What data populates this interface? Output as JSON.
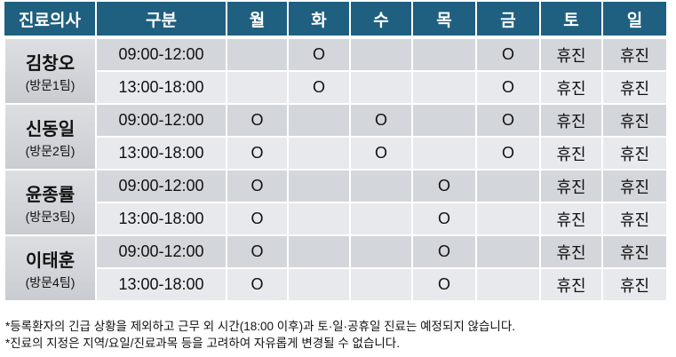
{
  "header": [
    "진료의사",
    "구분",
    "월",
    "화",
    "수",
    "목",
    "금",
    "토",
    "일"
  ],
  "doctors": [
    {
      "name": "김창오",
      "team": "(방문1팀)",
      "rows": [
        {
          "time": "09:00-12:00",
          "days": [
            "",
            "O",
            "",
            "",
            "O",
            "휴진",
            "휴진"
          ]
        },
        {
          "time": "13:00-18:00",
          "days": [
            "",
            "O",
            "",
            "",
            "O",
            "휴진",
            "휴진"
          ]
        }
      ]
    },
    {
      "name": "신동일",
      "team": "(방문2팀)",
      "rows": [
        {
          "time": "09:00-12:00",
          "days": [
            "O",
            "",
            "O",
            "",
            "O",
            "휴진",
            "휴진"
          ]
        },
        {
          "time": "13:00-18:00",
          "days": [
            "O",
            "",
            "O",
            "",
            "O",
            "휴진",
            "휴진"
          ]
        }
      ]
    },
    {
      "name": "윤종률",
      "team": "(방문3팀)",
      "rows": [
        {
          "time": "09:00-12:00",
          "days": [
            "O",
            "",
            "",
            "O",
            "",
            "휴진",
            "휴진"
          ]
        },
        {
          "time": "13:00-18:00",
          "days": [
            "O",
            "",
            "",
            "O",
            "",
            "휴진",
            "휴진"
          ]
        }
      ]
    },
    {
      "name": "이태훈",
      "team": "(방문4팀)",
      "rows": [
        {
          "time": "09:00-12:00",
          "days": [
            "O",
            "",
            "",
            "O",
            "",
            "휴진",
            "휴진"
          ]
        },
        {
          "time": "13:00-18:00",
          "days": [
            "O",
            "",
            "",
            "O",
            "",
            "휴진",
            "휴진"
          ]
        }
      ]
    }
  ],
  "notes": [
    "*등록환자의 긴급 상황을 제외하고 근무 외 시간(18:00 이후)과 토·일·공휴일 진료는 예정되지 않습니다.",
    "*진료의 지정은 지역/요일/진료과목 등을 고려하여 자유롭게 변경될 수 없습니다."
  ],
  "colors": {
    "header": "#1f5f7f",
    "row_a": "#d3d6db",
    "row_b": "#e8e9ec"
  }
}
